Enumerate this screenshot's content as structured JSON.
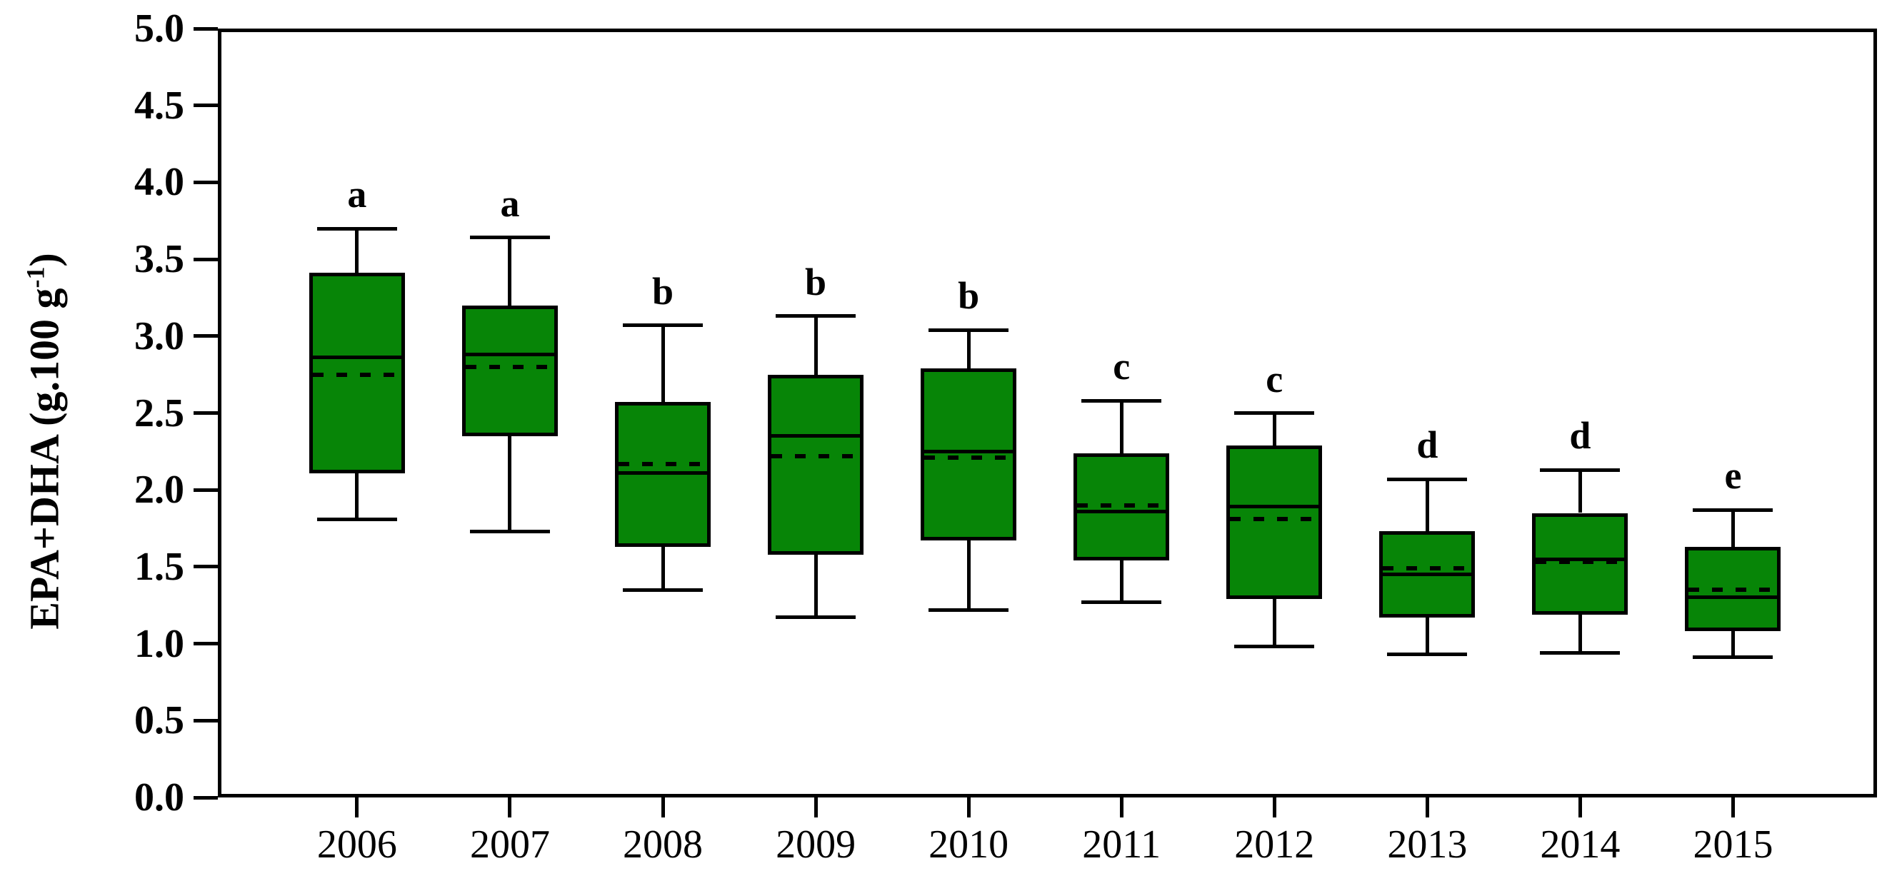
{
  "figure": {
    "background_color": "#ffffff",
    "line_color": "#000000",
    "box_fill_color": "#078507",
    "ylabel_prefix": "EPA+DHA (g.100 g",
    "ylabel_superscript": "-1",
    "ylabel_suffix": ")"
  },
  "chart_data": {
    "type": "boxplot",
    "title": "",
    "xlabel": "",
    "ylabel": "EPA+DHA (g.100 g-1)",
    "ylim": [
      0.0,
      5.0
    ],
    "ytick_step": 0.5,
    "ytick_labels": [
      "5.0",
      "4.5",
      "4.0",
      "3.5",
      "3.0",
      "2.5",
      "2.0",
      "1.5",
      "1.0",
      "0.5",
      "0.0"
    ],
    "grid": false,
    "legend": false,
    "categories": [
      "2006",
      "2007",
      "2008",
      "2009",
      "2010",
      "2011",
      "2012",
      "2013",
      "2014",
      "2015"
    ],
    "series": [
      {
        "category": "2006",
        "letter": "a",
        "whisker_high": 3.7,
        "q3": 3.41,
        "median": 2.86,
        "mean": 2.75,
        "q1": 2.11,
        "whisker_low": 1.81
      },
      {
        "category": "2007",
        "letter": "a",
        "whisker_high": 3.64,
        "q3": 3.2,
        "median": 2.88,
        "mean": 2.8,
        "q1": 2.35,
        "whisker_low": 1.73
      },
      {
        "category": "2008",
        "letter": "b",
        "whisker_high": 3.07,
        "q3": 2.57,
        "median": 2.11,
        "mean": 2.17,
        "q1": 1.63,
        "whisker_low": 1.35
      },
      {
        "category": "2009",
        "letter": "b",
        "whisker_high": 3.13,
        "q3": 2.75,
        "median": 2.35,
        "mean": 2.22,
        "q1": 1.58,
        "whisker_low": 1.17
      },
      {
        "category": "2010",
        "letter": "b",
        "whisker_high": 3.04,
        "q3": 2.79,
        "median": 2.25,
        "mean": 2.21,
        "q1": 1.67,
        "whisker_low": 1.22
      },
      {
        "category": "2011",
        "letter": "c",
        "whisker_high": 2.58,
        "q3": 2.24,
        "median": 1.86,
        "mean": 1.9,
        "q1": 1.54,
        "whisker_low": 1.27
      },
      {
        "category": "2012",
        "letter": "c",
        "whisker_high": 2.5,
        "q3": 2.29,
        "median": 1.89,
        "mean": 1.81,
        "q1": 1.29,
        "whisker_low": 0.98
      },
      {
        "category": "2013",
        "letter": "d",
        "whisker_high": 2.07,
        "q3": 1.73,
        "median": 1.45,
        "mean": 1.49,
        "q1": 1.17,
        "whisker_low": 0.93
      },
      {
        "category": "2014",
        "letter": "d",
        "whisker_high": 2.13,
        "q3": 1.85,
        "median": 1.55,
        "mean": 1.53,
        "q1": 1.19,
        "whisker_low": 0.94
      },
      {
        "category": "2015",
        "letter": "e",
        "whisker_high": 1.87,
        "q3": 1.63,
        "median": 1.3,
        "mean": 1.35,
        "q1": 1.08,
        "whisker_low": 0.91
      }
    ]
  }
}
